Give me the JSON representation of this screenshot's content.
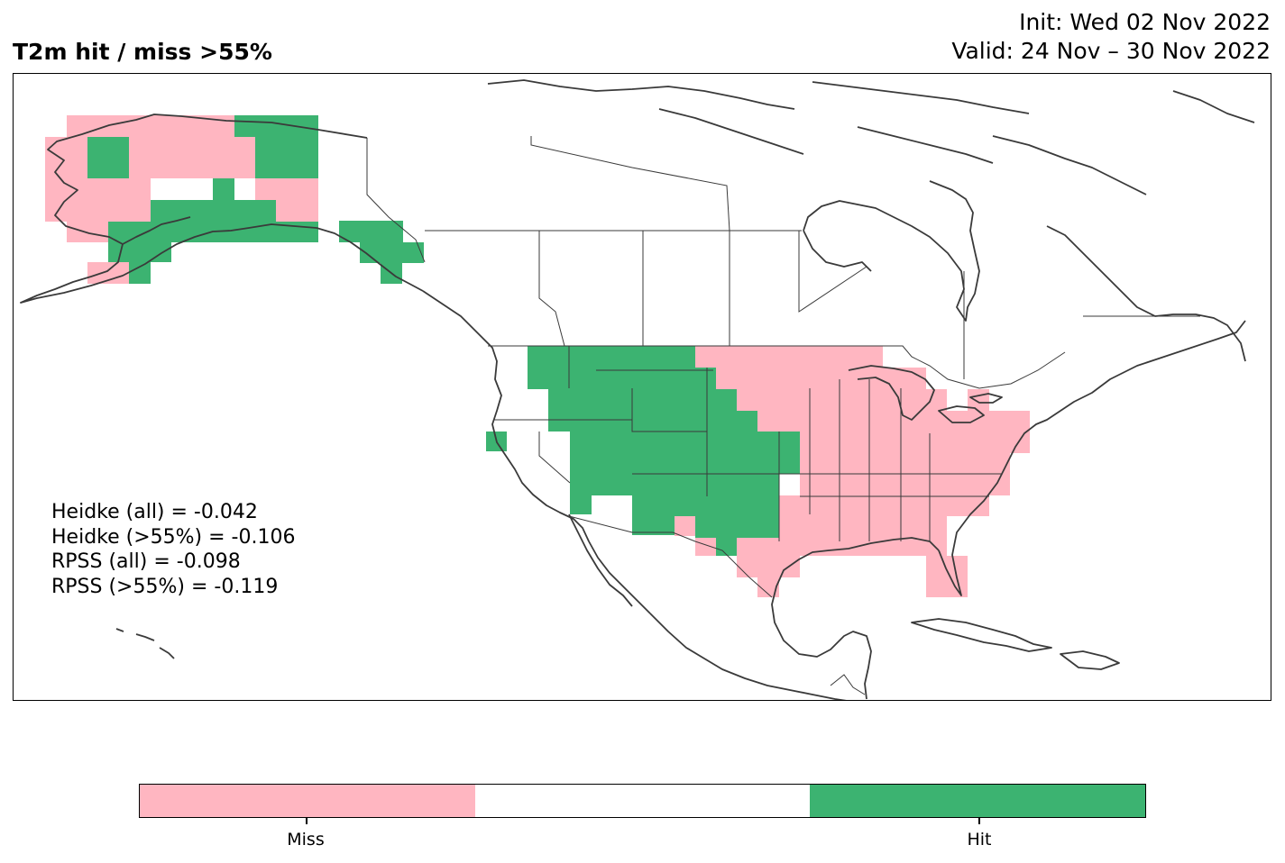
{
  "header": {
    "title": "T2m hit / miss  >55%",
    "init": "Init: Wed 02 Nov 2022",
    "valid": "Valid: 24 Nov – 30 Nov 2022"
  },
  "scores": {
    "heidke_all": "Heidke (all) = -0.042",
    "heidke_55": "Heidke (>55%) = -0.106",
    "rpss_all": "RPSS (all) = -0.098",
    "rpss_55": "RPSS (>55%) = -0.119"
  },
  "colorbar": {
    "colors": [
      "#ffb6c1",
      "#ffffff",
      "#3cb371"
    ],
    "labels": [
      "Miss",
      "Hit"
    ]
  },
  "legend_colors": {
    "miss": "#ffb6c1",
    "hit": "#3cb371",
    "coast": "#3a3a3a"
  }
}
